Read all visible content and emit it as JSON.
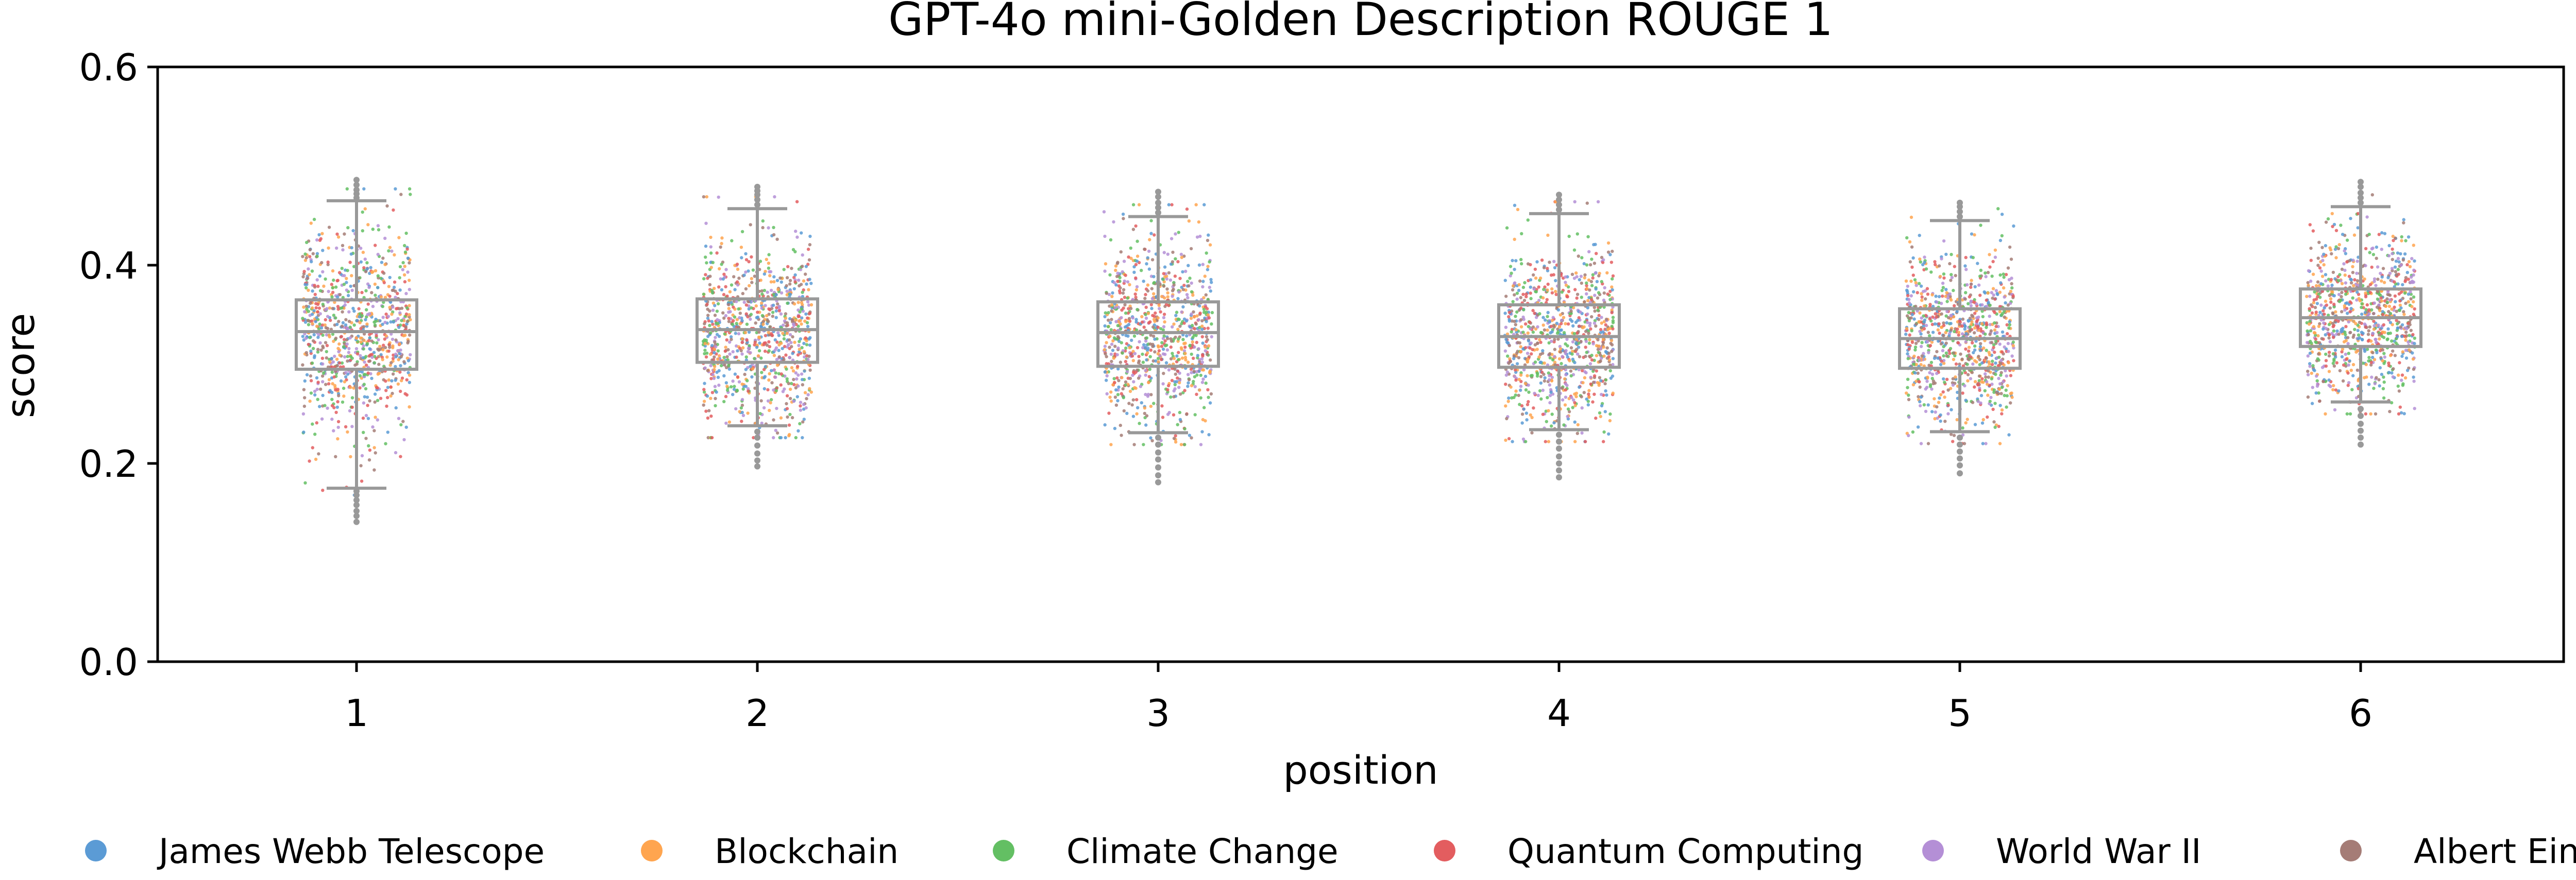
{
  "chart_data": {
    "type": "box+strip",
    "title": "GPT-4o mini-Golden Description ROUGE 1",
    "xlabel": "position",
    "ylabel": "score",
    "categories": [
      "1",
      "2",
      "3",
      "4",
      "5",
      "6"
    ],
    "ylim": [
      0.0,
      0.6
    ],
    "yticks": [
      0.0,
      0.2,
      0.4,
      0.6
    ],
    "ytick_labels": [
      "0.0",
      "0.2",
      "0.4",
      "0.6"
    ],
    "grid": false,
    "legend_position": "bottom",
    "box_color": "#999999",
    "boxes": [
      {
        "position": "1",
        "q1": 0.295,
        "median": 0.333,
        "q3": 0.365,
        "whisker_low": 0.175,
        "whisker_high": 0.465,
        "outliers": [
          0.172,
          0.168,
          0.163,
          0.158,
          0.152,
          0.147,
          0.141,
          0.468,
          0.472,
          0.476,
          0.481,
          0.486
        ]
      },
      {
        "position": "2",
        "q1": 0.302,
        "median": 0.335,
        "q3": 0.366,
        "whisker_low": 0.238,
        "whisker_high": 0.457,
        "outliers": [
          0.232,
          0.226,
          0.218,
          0.21,
          0.203,
          0.197,
          0.461,
          0.466,
          0.471,
          0.475,
          0.479
        ]
      },
      {
        "position": "3",
        "q1": 0.298,
        "median": 0.332,
        "q3": 0.363,
        "whisker_low": 0.231,
        "whisker_high": 0.449,
        "outliers": [
          0.226,
          0.219,
          0.211,
          0.204,
          0.196,
          0.188,
          0.181,
          0.453,
          0.458,
          0.463,
          0.469,
          0.474
        ]
      },
      {
        "position": "4",
        "q1": 0.297,
        "median": 0.328,
        "q3": 0.36,
        "whisker_low": 0.234,
        "whisker_high": 0.452,
        "outliers": [
          0.229,
          0.222,
          0.215,
          0.207,
          0.2,
          0.193,
          0.186,
          0.456,
          0.461,
          0.466,
          0.471
        ]
      },
      {
        "position": "5",
        "q1": 0.296,
        "median": 0.326,
        "q3": 0.356,
        "whisker_low": 0.232,
        "whisker_high": 0.445,
        "outliers": [
          0.226,
          0.219,
          0.212,
          0.205,
          0.198,
          0.19,
          0.449,
          0.454,
          0.459,
          0.463
        ]
      },
      {
        "position": "6",
        "q1": 0.318,
        "median": 0.347,
        "q3": 0.376,
        "whisker_low": 0.262,
        "whisker_high": 0.459,
        "outliers": [
          0.255,
          0.248,
          0.24,
          0.233,
          0.226,
          0.219,
          0.463,
          0.468,
          0.473,
          0.479,
          0.484
        ]
      }
    ],
    "series": [
      {
        "name": "James Webb Telescope",
        "color": "#5b9bd5"
      },
      {
        "name": "Blockchain",
        "color": "#ffa54f"
      },
      {
        "name": "Climate Change",
        "color": "#63bf63"
      },
      {
        "name": "Quantum Computing",
        "color": "#e35d5f"
      },
      {
        "name": "World War II",
        "color": "#b48fd6"
      },
      {
        "name": "Albert Einstein",
        "color": "#a57c76"
      }
    ]
  }
}
